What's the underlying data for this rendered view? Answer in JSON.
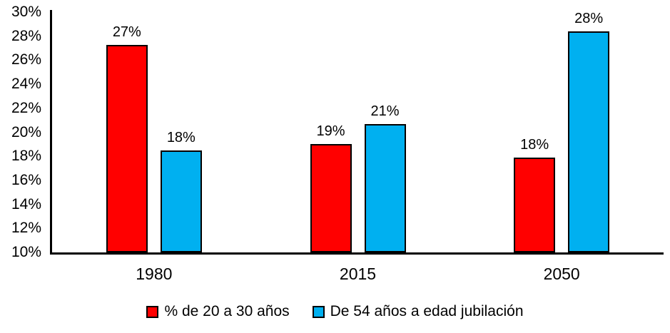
{
  "chart_data": {
    "type": "bar",
    "title": "",
    "xlabel": "",
    "ylabel": "",
    "categories": [
      "1980",
      "2015",
      "2050"
    ],
    "series": [
      {
        "name": "% de 20 a 30 años",
        "color": "#FF0000",
        "values": [
          27.3,
          19.0,
          17.9
        ],
        "labels": [
          "27%",
          "19%",
          "18%"
        ]
      },
      {
        "name": "De 54 años a edad jubilación",
        "color": "#00B0F0",
        "values": [
          18.5,
          20.7,
          28.4
        ],
        "labels": [
          "18%",
          "21%",
          "28%"
        ]
      }
    ],
    "ylim": [
      10,
      30
    ],
    "ytick_step": 2,
    "yticks": [
      {
        "value": 30,
        "label": "30%"
      },
      {
        "value": 28,
        "label": "28%"
      },
      {
        "value": 26,
        "label": "26%"
      },
      {
        "value": 24,
        "label": "24%"
      },
      {
        "value": 22,
        "label": "22%"
      },
      {
        "value": 20,
        "label": "20%"
      },
      {
        "value": 18,
        "label": "18%"
      },
      {
        "value": 16,
        "label": "16%"
      },
      {
        "value": 14,
        "label": "14%"
      },
      {
        "value": 12,
        "label": "12%"
      },
      {
        "value": 10,
        "label": "10%"
      }
    ],
    "grid": false,
    "legend_position": "bottom",
    "bar_border_color": "#000000",
    "axis_color": "#000000",
    "background_color": "#FFFFFF"
  }
}
